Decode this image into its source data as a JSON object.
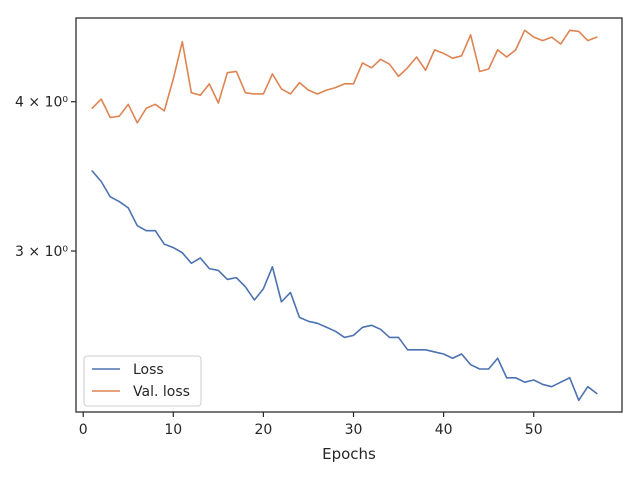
{
  "chart_data": {
    "type": "line",
    "xlabel": "Epochs",
    "ylabel": "",
    "y_scale": "log",
    "xlim": [
      -0.8,
      59.8
    ],
    "ylim": [
      2.2,
      4.7
    ],
    "grid": false,
    "legend_placement": "lower-left",
    "x_ticks": [
      0,
      10,
      20,
      30,
      40,
      50
    ],
    "y_ticks": [
      {
        "value": 3,
        "label": "3 × 10⁰"
      },
      {
        "value": 4,
        "label": "4 × 10⁰"
      }
    ],
    "x": [
      1,
      2,
      3,
      4,
      5,
      6,
      7,
      8,
      9,
      10,
      11,
      12,
      13,
      14,
      15,
      16,
      17,
      18,
      19,
      20,
      21,
      22,
      23,
      24,
      25,
      26,
      27,
      28,
      29,
      30,
      31,
      32,
      33,
      34,
      35,
      36,
      37,
      38,
      39,
      40,
      41,
      42,
      43,
      44,
      45,
      46,
      47,
      48,
      49,
      50,
      51,
      52,
      53,
      54,
      55,
      56,
      57
    ],
    "series": [
      {
        "name": "Loss",
        "color": "#4c72b0",
        "values": [
          3.5,
          3.43,
          3.33,
          3.3,
          3.26,
          3.15,
          3.12,
          3.12,
          3.04,
          3.02,
          2.99,
          2.93,
          2.96,
          2.9,
          2.89,
          2.84,
          2.85,
          2.8,
          2.73,
          2.79,
          2.91,
          2.72,
          2.77,
          2.64,
          2.62,
          2.61,
          2.59,
          2.57,
          2.54,
          2.55,
          2.59,
          2.6,
          2.58,
          2.54,
          2.54,
          2.48,
          2.48,
          2.48,
          2.47,
          2.46,
          2.44,
          2.46,
          2.41,
          2.39,
          2.39,
          2.44,
          2.35,
          2.35,
          2.33,
          2.34,
          2.32,
          2.31,
          2.33,
          2.35,
          2.25,
          2.31,
          2.28
        ]
      },
      {
        "name": "Val. loss",
        "color": "#dd8452",
        "values": [
          3.95,
          4.02,
          3.88,
          3.89,
          3.98,
          3.84,
          3.95,
          3.98,
          3.93,
          4.18,
          4.49,
          4.07,
          4.05,
          4.14,
          3.99,
          4.23,
          4.24,
          4.07,
          4.06,
          4.06,
          4.22,
          4.1,
          4.06,
          4.15,
          4.09,
          4.06,
          4.09,
          4.11,
          4.14,
          4.14,
          4.31,
          4.27,
          4.34,
          4.3,
          4.2,
          4.27,
          4.36,
          4.25,
          4.42,
          4.39,
          4.35,
          4.37,
          4.55,
          4.24,
          4.26,
          4.42,
          4.36,
          4.42,
          4.59,
          4.53,
          4.5,
          4.53,
          4.47,
          4.59,
          4.58,
          4.5,
          4.53
        ]
      }
    ]
  }
}
